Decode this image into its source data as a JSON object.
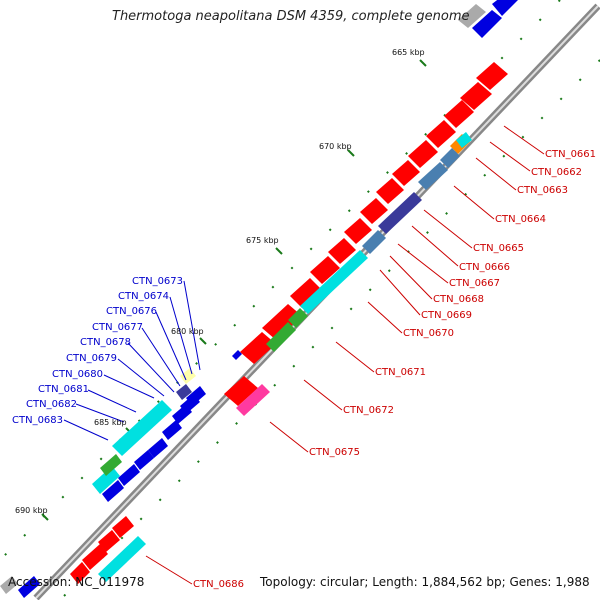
{
  "title": "Thermotoga neapolitana DSM 4359, complete genome",
  "footer": {
    "accession": "Accession: NC_011978",
    "summary": "Topology: circular; Length: 1,884,562 bp; Genes: 1,988"
  },
  "ticks": [
    "665 kbp",
    "670 kbp",
    "675 kbp",
    "680 kbp",
    "685 kbp",
    "690 kbp"
  ],
  "genes_right": [
    "CTN_0661",
    "CTN_0662",
    "CTN_0663",
    "CTN_0664",
    "CTN_0665",
    "CTN_0666",
    "CTN_0667",
    "CTN_0668",
    "CTN_0669",
    "CTN_0670",
    "CTN_0671",
    "CTN_0672",
    "CTN_0675",
    "CTN_0686"
  ],
  "genes_left": [
    "CTN_0673",
    "CTN_0674",
    "CTN_0676",
    "CTN_0677",
    "CTN_0678",
    "CTN_0679",
    "CTN_0680",
    "CTN_0681",
    "CTN_0682",
    "CTN_0683"
  ],
  "colors": {
    "forward_cds": "#ff0000",
    "reverse_cds": "#0000e0",
    "label_right": "#cc0000",
    "label_left": "#0000cc",
    "backbone": "#888888",
    "tick": "#1a7a1a",
    "cyan_feature": "#00e0e0",
    "steel_feature": "#4a7fb0",
    "purple_feature": "#3a3a9a",
    "green_feature": "#33aa33",
    "pink_feature": "#ff3aa0",
    "orange_feature": "#ff8800"
  }
}
